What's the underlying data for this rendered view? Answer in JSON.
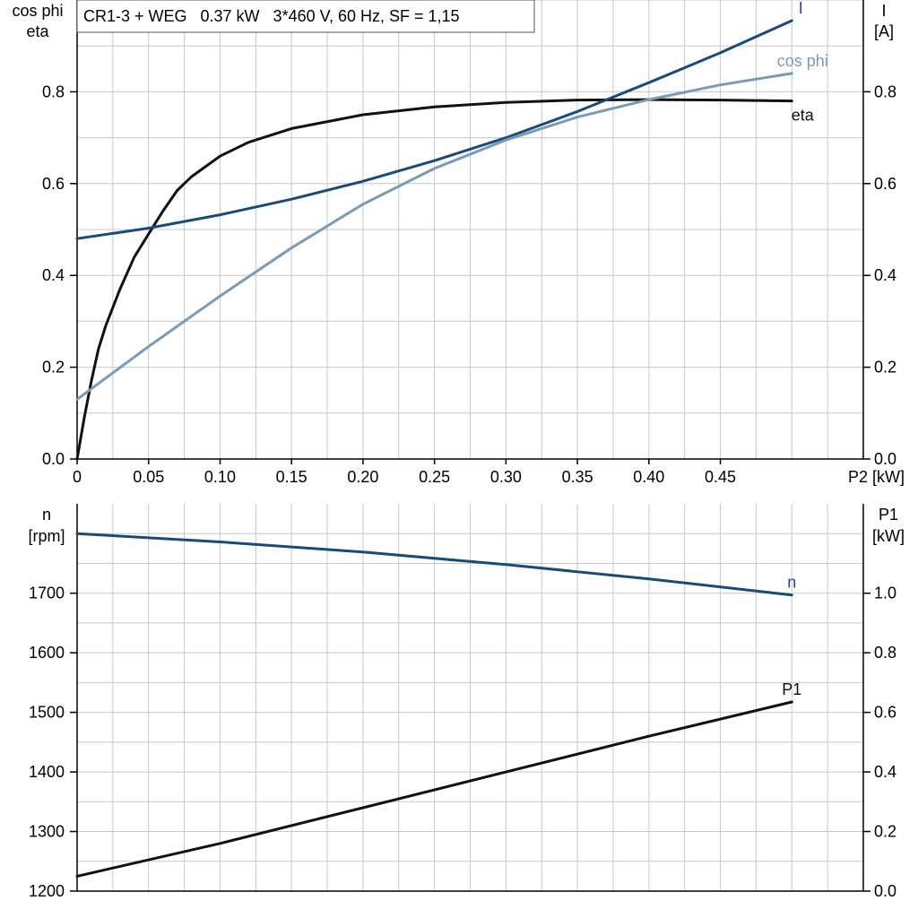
{
  "header": {
    "title": "CR1-3 + WEG   0.37 kW   3*460 V, 60 Hz, SF = 1,15"
  },
  "colors": {
    "eta": "#111111",
    "I": "#1a4a7a",
    "cos_phi": "#7b9ab6",
    "n": "#1a4a7a",
    "P1": "#111111",
    "grid": "#c8c8c8"
  },
  "chart_data": [
    {
      "type": "line",
      "xlabel": "P2 [kW]",
      "ylabel_left": [
        "cos phi",
        "eta"
      ],
      "ylabel_right": [
        "I",
        "[A]"
      ],
      "xlim": [
        0,
        0.55
      ],
      "ylim_left": [
        0,
        1.0
      ],
      "ylim_right": [
        0,
        1.0
      ],
      "x_ticks": [
        "0",
        "0.05",
        "0.10",
        "0.15",
        "0.20",
        "0.25",
        "0.30",
        "0.35",
        "0.40",
        "0.45"
      ],
      "x_tick_values": [
        0,
        0.05,
        0.1,
        0.15,
        0.2,
        0.25,
        0.3,
        0.35,
        0.4,
        0.45
      ],
      "y_ticks_left": [
        "0.0",
        "0.2",
        "0.4",
        "0.6",
        "0.8"
      ],
      "y_ticks_right": [
        "0.0",
        "0.2",
        "0.4",
        "0.6",
        "0.8"
      ],
      "y_tick_values": [
        0,
        0.2,
        0.4,
        0.6,
        0.8
      ],
      "grid": true,
      "series": [
        {
          "name": "eta",
          "axis": "left",
          "color_key": "eta",
          "x": [
            0,
            0.005,
            0.01,
            0.015,
            0.02,
            0.03,
            0.04,
            0.05,
            0.06,
            0.07,
            0.08,
            0.1,
            0.12,
            0.15,
            0.2,
            0.25,
            0.3,
            0.35,
            0.4,
            0.45,
            0.5
          ],
          "y": [
            0,
            0.09,
            0.17,
            0.24,
            0.29,
            0.37,
            0.44,
            0.49,
            0.54,
            0.585,
            0.615,
            0.66,
            0.69,
            0.72,
            0.75,
            0.767,
            0.777,
            0.782,
            0.783,
            0.782,
            0.78
          ]
        },
        {
          "name": "I",
          "axis": "right",
          "color_key": "I",
          "x": [
            0,
            0.05,
            0.1,
            0.15,
            0.2,
            0.25,
            0.3,
            0.35,
            0.4,
            0.45,
            0.5
          ],
          "y": [
            0.48,
            0.503,
            0.532,
            0.566,
            0.605,
            0.65,
            0.7,
            0.757,
            0.82,
            0.885,
            0.955
          ]
        },
        {
          "name": "cos phi",
          "axis": "left",
          "color_key": "cos_phi",
          "x": [
            0,
            0.05,
            0.1,
            0.15,
            0.2,
            0.25,
            0.3,
            0.35,
            0.4,
            0.45,
            0.5
          ],
          "y": [
            0.13,
            0.245,
            0.355,
            0.46,
            0.555,
            0.633,
            0.695,
            0.745,
            0.783,
            0.815,
            0.84
          ]
        }
      ],
      "annotations": [
        "I",
        "cos phi",
        "eta"
      ]
    },
    {
      "type": "line",
      "ylabel_left": [
        "n",
        "[rpm]"
      ],
      "ylabel_right": [
        "P1",
        "[kW]"
      ],
      "xlim": [
        0,
        0.55
      ],
      "ylim_left": [
        1200,
        1850
      ],
      "ylim_right": [
        0,
        1.3
      ],
      "y_ticks_left": [
        "1200",
        "1300",
        "1400",
        "1500",
        "1600",
        "1700"
      ],
      "y_tick_values_left": [
        1200,
        1300,
        1400,
        1500,
        1600,
        1700
      ],
      "y_ticks_right": [
        "0.0",
        "0.2",
        "0.4",
        "0.6",
        "0.8",
        "1.0"
      ],
      "y_tick_values_right": [
        0,
        0.2,
        0.4,
        0.6,
        0.8,
        1.0
      ],
      "grid": true,
      "series": [
        {
          "name": "n",
          "axis": "left",
          "color_key": "n",
          "x": [
            0,
            0.1,
            0.2,
            0.3,
            0.4,
            0.5
          ],
          "y": [
            1800,
            1786,
            1769,
            1748,
            1724,
            1697
          ]
        },
        {
          "name": "P1",
          "axis": "right",
          "color_key": "P1",
          "x": [
            0,
            0.1,
            0.2,
            0.3,
            0.4,
            0.5
          ],
          "y": [
            0.05,
            0.16,
            0.28,
            0.4,
            0.52,
            0.635
          ]
        }
      ],
      "annotations": [
        "n",
        "P1"
      ]
    }
  ]
}
